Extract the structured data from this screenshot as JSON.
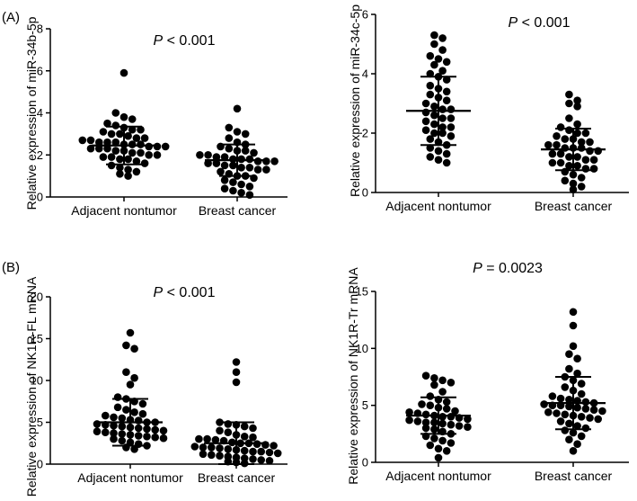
{
  "figure": {
    "panels": {
      "A": "(A)",
      "B": "(B)"
    }
  },
  "chart_data": [
    {
      "type": "scatter",
      "panel": "A",
      "ylabel": "Relative expression of miR-34b-5p",
      "p_italic": "P",
      "p_rest": " < 0.001",
      "yticks": [
        0,
        2,
        4,
        6,
        8
      ],
      "ylim": [
        0,
        8
      ],
      "categories": [
        "Adjacent nontumor",
        "Breast cancer"
      ],
      "series": [
        {
          "name": "Adjacent nontumor",
          "mean": 2.45,
          "sd": 0.9,
          "values": [
            5.9,
            4.0,
            3.8,
            3.7,
            3.5,
            3.4,
            3.3,
            3.2,
            3.2,
            3.1,
            3.0,
            3.0,
            2.9,
            2.8,
            2.8,
            2.7,
            2.7,
            2.6,
            2.6,
            2.6,
            2.5,
            2.5,
            2.5,
            2.4,
            2.4,
            2.4,
            2.3,
            2.3,
            2.3,
            2.2,
            2.2,
            2.1,
            2.1,
            2.0,
            2.0,
            1.9,
            1.9,
            1.8,
            1.8,
            1.7,
            1.6,
            1.5,
            1.4,
            1.3,
            1.2,
            1.1,
            1.0
          ]
        },
        {
          "name": "Breast cancer",
          "mean": 1.75,
          "sd": 0.75,
          "values": [
            4.2,
            3.3,
            3.1,
            3.0,
            2.8,
            2.6,
            2.5,
            2.4,
            2.3,
            2.2,
            2.2,
            2.1,
            2.0,
            2.0,
            1.9,
            1.9,
            1.8,
            1.8,
            1.8,
            1.7,
            1.7,
            1.7,
            1.6,
            1.6,
            1.5,
            1.5,
            1.4,
            1.4,
            1.3,
            1.3,
            1.2,
            1.1,
            1.0,
            1.0,
            0.9,
            0.8,
            0.7,
            0.6,
            0.5,
            0.4,
            0.3,
            0.2,
            0.1
          ]
        }
      ]
    },
    {
      "type": "scatter",
      "panel": "A",
      "ylabel": "Relative expression of miR-34c-5p",
      "p_italic": "P",
      "p_rest": " < 0.001",
      "yticks": [
        0,
        2,
        4,
        6
      ],
      "ylim": [
        0,
        6
      ],
      "categories": [
        "Adjacent nontumor",
        "Breast cancer"
      ],
      "series": [
        {
          "name": "Adjacent nontumor",
          "mean": 2.75,
          "sd": 1.15,
          "values": [
            5.3,
            5.2,
            5.0,
            4.8,
            4.6,
            4.5,
            4.4,
            4.3,
            4.1,
            4.0,
            3.9,
            3.8,
            3.6,
            3.5,
            3.4,
            3.3,
            3.2,
            3.1,
            3.0,
            2.9,
            2.8,
            2.8,
            2.7,
            2.6,
            2.5,
            2.5,
            2.4,
            2.3,
            2.2,
            2.2,
            2.1,
            2.0,
            2.0,
            1.9,
            1.8,
            1.7,
            1.6,
            1.5,
            1.4,
            1.3,
            1.2,
            1.1,
            1.0
          ]
        },
        {
          "name": "Breast cancer",
          "mean": 1.45,
          "sd": 0.7,
          "values": [
            3.3,
            3.1,
            3.0,
            2.9,
            2.5,
            2.3,
            2.2,
            2.1,
            2.0,
            2.0,
            1.9,
            1.8,
            1.8,
            1.7,
            1.7,
            1.6,
            1.6,
            1.5,
            1.5,
            1.5,
            1.4,
            1.4,
            1.3,
            1.3,
            1.2,
            1.2,
            1.1,
            1.1,
            1.0,
            1.0,
            0.9,
            0.9,
            0.8,
            0.8,
            0.7,
            0.6,
            0.5,
            0.4,
            0.3,
            0.2,
            0.1
          ]
        }
      ]
    },
    {
      "type": "scatter",
      "panel": "B",
      "ylabel": "Relative expression of NK1R-FL mRNA",
      "p_italic": "P",
      "p_rest": " < 0.001",
      "yticks": [
        0,
        5,
        10,
        15,
        20
      ],
      "ylim": [
        0,
        20
      ],
      "categories": [
        "Adjacent nontumor",
        "Breast cancer"
      ],
      "series": [
        {
          "name": "Adjacent nontumor",
          "mean": 5.0,
          "sd": 2.8,
          "values": [
            15.7,
            14.2,
            13.8,
            11.0,
            10.3,
            9.5,
            8.0,
            7.8,
            7.5,
            7.2,
            6.8,
            6.5,
            6.2,
            6.0,
            5.8,
            5.6,
            5.5,
            5.3,
            5.2,
            5.0,
            5.0,
            4.8,
            4.7,
            4.6,
            4.5,
            4.4,
            4.3,
            4.2,
            4.1,
            4.0,
            3.9,
            3.8,
            3.7,
            3.6,
            3.5,
            3.4,
            3.3,
            3.2,
            3.1,
            3.0,
            2.8,
            2.6,
            2.4,
            2.2,
            2.0,
            1.8
          ]
        },
        {
          "name": "Breast cancer",
          "mean": 2.5,
          "sd": 2.5,
          "values": [
            12.2,
            11.0,
            9.8,
            5.0,
            4.8,
            4.7,
            4.5,
            4.3,
            4.0,
            3.8,
            3.5,
            3.3,
            3.2,
            3.0,
            3.0,
            2.9,
            2.8,
            2.6,
            2.5,
            2.5,
            2.4,
            2.3,
            2.2,
            2.1,
            2.0,
            2.0,
            1.9,
            1.8,
            1.7,
            1.6,
            1.5,
            1.5,
            1.4,
            1.3,
            1.2,
            1.1,
            1.0,
            0.9,
            0.8,
            0.7,
            0.6,
            0.5,
            0.4,
            0.3,
            0.2,
            0.1
          ]
        }
      ]
    },
    {
      "type": "scatter",
      "panel": "B",
      "ylabel": "Relative expression of NK1R-Tr mRNA",
      "p_italic": "P",
      "p_rest": " = 0.0023",
      "yticks": [
        0,
        5,
        10,
        15
      ],
      "ylim": [
        0,
        15
      ],
      "categories": [
        "Adjacent nontumor",
        "Breast cancer"
      ],
      "series": [
        {
          "name": "Adjacent nontumor",
          "mean": 4.1,
          "sd": 1.6,
          "values": [
            7.6,
            7.4,
            7.2,
            7.0,
            6.8,
            6.2,
            5.8,
            5.5,
            5.3,
            5.1,
            5.0,
            4.8,
            4.7,
            4.5,
            4.4,
            4.3,
            4.2,
            4.1,
            4.0,
            4.0,
            3.9,
            3.8,
            3.7,
            3.6,
            3.5,
            3.5,
            3.4,
            3.3,
            3.2,
            3.1,
            3.0,
            2.9,
            2.7,
            2.5,
            2.3,
            2.1,
            1.9,
            1.7,
            1.5,
            1.2,
            1.0,
            0.4
          ]
        },
        {
          "name": "Breast cancer",
          "mean": 5.2,
          "sd": 2.3,
          "values": [
            13.2,
            12.0,
            10.2,
            9.5,
            9.1,
            8.2,
            7.8,
            7.5,
            7.2,
            6.9,
            6.6,
            6.3,
            6.0,
            5.8,
            5.6,
            5.5,
            5.4,
            5.3,
            5.2,
            5.1,
            5.0,
            5.0,
            4.9,
            4.8,
            4.7,
            4.6,
            4.5,
            4.4,
            4.3,
            4.2,
            4.1,
            4.0,
            3.9,
            3.8,
            3.6,
            3.4,
            3.2,
            3.0,
            2.8,
            2.6,
            2.3,
            2.0,
            1.6,
            1.0
          ]
        }
      ]
    }
  ]
}
